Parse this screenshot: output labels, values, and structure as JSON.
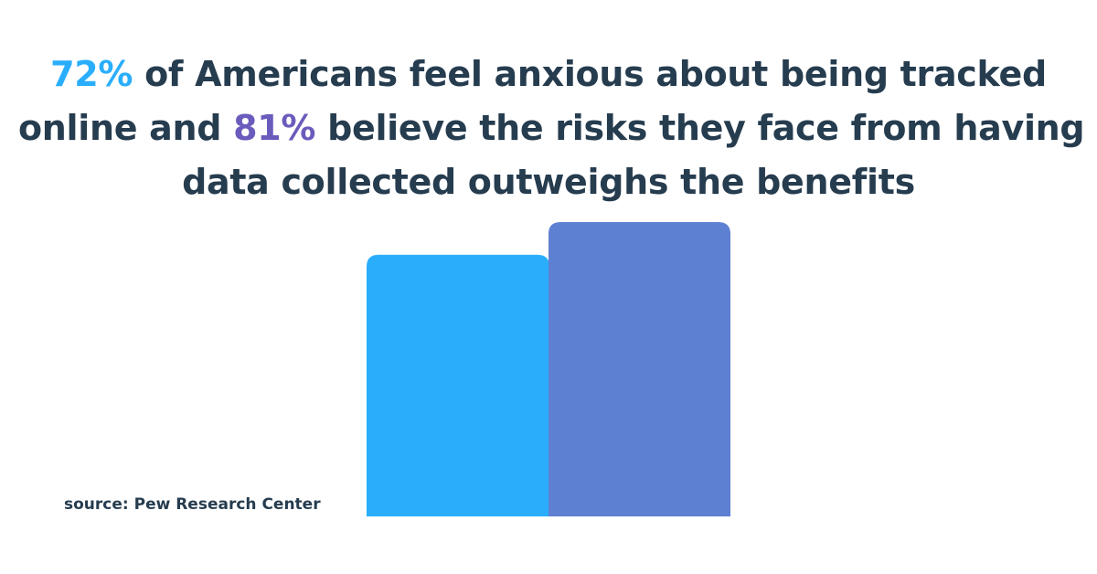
{
  "headline": {
    "pct1": "72%",
    "line1_rest": " of Americans feel anxious about being tracked",
    "line2_start": "online and ",
    "pct2": "81%",
    "line2_rest": " believe the risks they face from having",
    "line3": "data collected outweighs the benefits"
  },
  "source": "source: Pew Research Center",
  "colors": {
    "text": "#263c4f",
    "accent_1": "#2aaefc",
    "accent_2": "#6a5cbc",
    "bar_1": "#2aaefc",
    "bar_2": "#5e80d2",
    "background": "#ffffff"
  },
  "chart_data": {
    "type": "bar",
    "categories": [
      "",
      ""
    ],
    "values": [
      72,
      81
    ],
    "title": "",
    "xlabel": "",
    "ylabel": "",
    "grid": false,
    "legend": "none"
  }
}
